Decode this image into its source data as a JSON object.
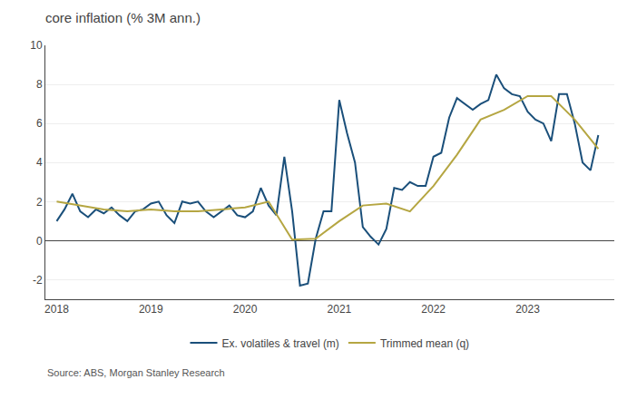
{
  "chart_data": {
    "type": "line",
    "title": "core inflation (% 3M ann.)",
    "annotations": [
      "Source: ABS, Morgan Stanley Research"
    ],
    "series": [
      {
        "name": "Ex. volatiles & travel (m)",
        "color": "#1a4f7a",
        "x": [
          2018.0,
          2018.083,
          2018.167,
          2018.25,
          2018.333,
          2018.417,
          2018.5,
          2018.583,
          2018.667,
          2018.75,
          2018.833,
          2018.917,
          2019.0,
          2019.083,
          2019.167,
          2019.25,
          2019.333,
          2019.417,
          2019.5,
          2019.583,
          2019.667,
          2019.75,
          2019.833,
          2019.917,
          2020.0,
          2020.083,
          2020.167,
          2020.25,
          2020.333,
          2020.417,
          2020.5,
          2020.583,
          2020.667,
          2020.75,
          2020.833,
          2020.917,
          2021.0,
          2021.083,
          2021.167,
          2021.25,
          2021.333,
          2021.417,
          2021.5,
          2021.583,
          2021.667,
          2021.75,
          2021.833,
          2021.917,
          2022.0,
          2022.083,
          2022.167,
          2022.25,
          2022.333,
          2022.417,
          2022.5,
          2022.583,
          2022.667,
          2022.75,
          2022.833,
          2022.917,
          2023.0,
          2023.083,
          2023.167,
          2023.25,
          2023.333,
          2023.417,
          2023.5,
          2023.583,
          2023.667,
          2023.75
        ],
        "values": [
          1.0,
          1.6,
          2.4,
          1.5,
          1.2,
          1.6,
          1.4,
          1.7,
          1.3,
          1.0,
          1.5,
          1.6,
          1.9,
          2.0,
          1.3,
          0.9,
          2.0,
          1.9,
          2.0,
          1.5,
          1.2,
          1.5,
          1.8,
          1.3,
          1.2,
          1.5,
          2.7,
          1.8,
          1.3,
          4.3,
          1.5,
          -2.3,
          -2.2,
          0.1,
          1.5,
          1.5,
          7.2,
          5.5,
          4.0,
          0.7,
          0.2,
          -0.2,
          0.6,
          2.7,
          2.6,
          3.0,
          2.8,
          2.8,
          4.3,
          4.5,
          6.3,
          7.3,
          7.0,
          6.7,
          7.0,
          7.2,
          8.5,
          7.8,
          7.5,
          7.4,
          6.6,
          6.2,
          6.0,
          5.1,
          7.5,
          7.5,
          6.0,
          4.0,
          3.6,
          5.4
        ]
      },
      {
        "name": "Trimmed mean (q)",
        "color": "#b5a642",
        "x": [
          2018.0,
          2018.25,
          2018.5,
          2018.75,
          2019.0,
          2019.25,
          2019.5,
          2019.75,
          2020.0,
          2020.25,
          2020.5,
          2020.75,
          2021.0,
          2021.25,
          2021.5,
          2021.75,
          2022.0,
          2022.25,
          2022.5,
          2022.75,
          2023.0,
          2023.25,
          2023.5,
          2023.75
        ],
        "values": [
          2.0,
          1.8,
          1.6,
          1.5,
          1.6,
          1.5,
          1.5,
          1.6,
          1.7,
          2.0,
          0.05,
          0.1,
          1.0,
          1.8,
          1.9,
          1.5,
          2.8,
          4.4,
          6.2,
          6.7,
          7.4,
          7.4,
          6.2,
          4.7
        ]
      }
    ],
    "xlim": [
      2017.88,
      2023.92
    ],
    "xticks": [
      2018,
      2019,
      2020,
      2021,
      2022,
      2023
    ],
    "ylim": [
      -3,
      10
    ],
    "yticks": [
      -2,
      0,
      2,
      4,
      6,
      8,
      10
    ],
    "grid": "y",
    "legend": "bottom"
  }
}
